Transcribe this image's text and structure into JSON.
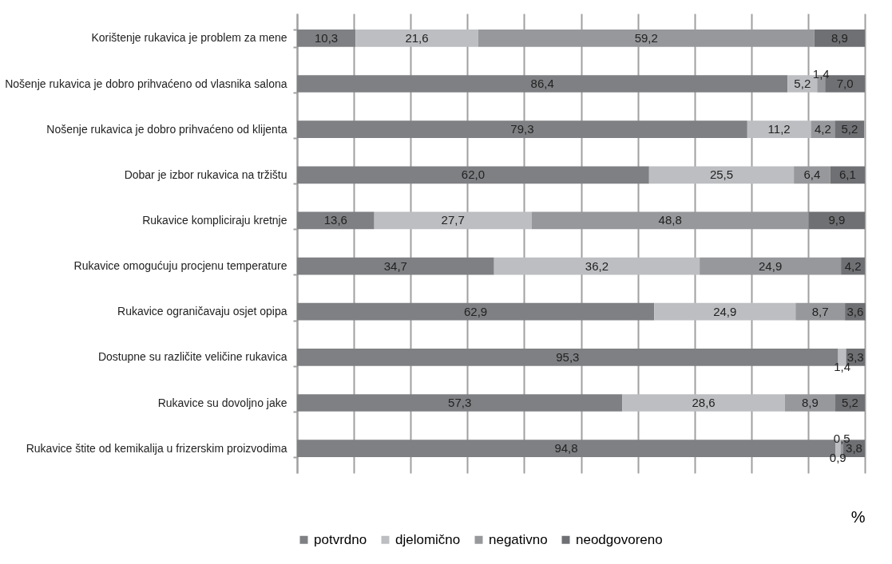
{
  "chart_data": {
    "type": "bar",
    "orientation": "horizontal",
    "stacked": true,
    "xlabel": "%",
    "categories": [
      "Korištenje rukavica je problem za mene",
      "Nošenje rukavica je dobro prihvaćeno od vlasnika salona",
      "Nošenje rukavica je dobro prihvaćeno od klijenta",
      "Dobar je izbor rukavica na tržištu",
      "Rukavice kompliciraju kretnje",
      "Rukavice omogućuju procjenu temperature",
      "Rukavice ograničavaju osjet opipa",
      "Dostupne su različite veličine rukavica",
      "Rukavice su dovoljno jake",
      "Rukavice štite od kemikalija u frizerskim proizvodima"
    ],
    "series": [
      {
        "name": "potvrdno",
        "color": "#7f8083",
        "values": [
          10.3,
          86.4,
          79.3,
          62.0,
          13.6,
          34.7,
          62.9,
          95.3,
          57.3,
          94.8
        ],
        "value_labels": [
          "10,3",
          "86,4",
          "79,3",
          "62,0",
          "13,6",
          "34,7",
          "62,9",
          "95,3",
          "57,3",
          "94,8"
        ]
      },
      {
        "name": "djelomično",
        "color": "#bdbec1",
        "values": [
          21.6,
          5.2,
          11.2,
          25.5,
          27.7,
          36.2,
          24.9,
          1.4,
          28.6,
          0.9
        ],
        "value_labels": [
          "21,6",
          "5,2",
          "11,2",
          "25,5",
          "27,7",
          "36,2",
          "24,9",
          "1,4",
          "28,6",
          "0,9"
        ]
      },
      {
        "name": "negativno",
        "color": "#97989b",
        "values": [
          59.2,
          1.4,
          4.2,
          6.4,
          48.8,
          24.9,
          8.7,
          null,
          8.9,
          0.5
        ],
        "value_labels": [
          "59,2",
          "1,4",
          "4,2",
          "6,4",
          "48,8",
          "24,9",
          "8,7",
          null,
          "8,9",
          "0,5"
        ]
      },
      {
        "name": "neodgovoreno",
        "color": "#6f7073",
        "values": [
          8.9,
          7.0,
          5.2,
          6.1,
          9.9,
          4.2,
          3.6,
          3.3,
          5.2,
          3.8
        ],
        "value_labels": [
          "8,9",
          "7,0",
          "5,2",
          "6,1",
          "9,9",
          "4,2",
          "3,6",
          "3,3",
          "5,2",
          "3,8"
        ]
      }
    ],
    "xlim": [
      0,
      100
    ],
    "xticks": [
      {
        "value": 0,
        "label": null
      },
      {
        "value": 10,
        "label": null
      },
      {
        "value": 20,
        "label": null
      },
      {
        "value": 30,
        "label": null
      },
      {
        "value": 40,
        "label": null
      },
      {
        "value": 50,
        "label": null
      },
      {
        "value": 60,
        "label": null
      },
      {
        "value": 70,
        "label": null
      },
      {
        "value": 80,
        "label": null
      },
      {
        "value": 90,
        "label": null
      },
      {
        "value": 100,
        "label": null
      }
    ],
    "tick_labels": "y",
    "grid": "x",
    "legend": "bottom"
  }
}
